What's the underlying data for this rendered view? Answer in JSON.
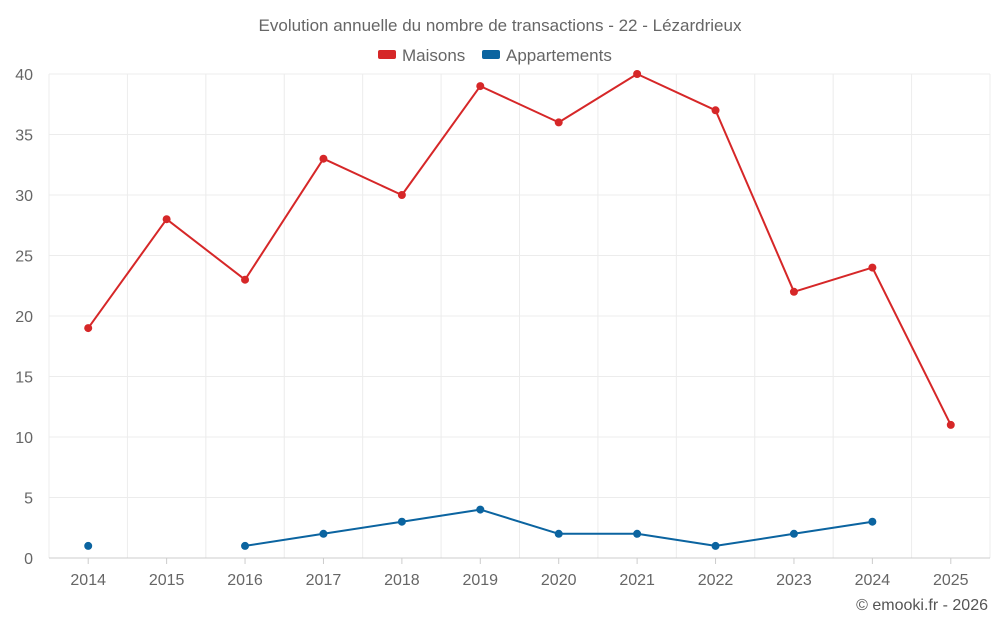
{
  "chart_data": {
    "type": "line",
    "title": "Evolution annuelle du nombre de transactions - 22 - Lézardrieux",
    "categories": [
      "2014",
      "2015",
      "2016",
      "2017",
      "2018",
      "2019",
      "2020",
      "2021",
      "2022",
      "2023",
      "2024",
      "2025"
    ],
    "series": [
      {
        "name": "Maisons",
        "color": "#d62728",
        "values": [
          19,
          28,
          23,
          33,
          30,
          39,
          36,
          40,
          37,
          22,
          24,
          11
        ]
      },
      {
        "name": "Appartements",
        "color": "#0b64a0",
        "values": [
          1,
          null,
          1,
          2,
          3,
          4,
          2,
          2,
          1,
          2,
          3,
          null
        ]
      }
    ],
    "ylim": [
      0,
      40
    ],
    "yticks": [
      0,
      5,
      10,
      15,
      20,
      25,
      30,
      35,
      40
    ],
    "xlabel": "",
    "ylabel": "",
    "grid": true,
    "legend": "top-center"
  },
  "credit": "© emooki.fr - 2026"
}
